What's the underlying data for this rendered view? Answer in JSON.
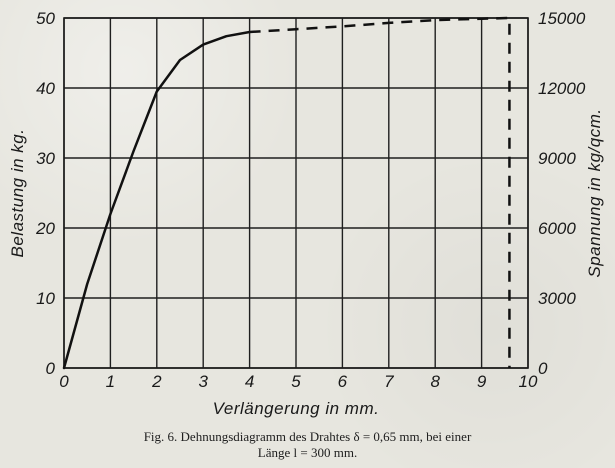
{
  "figure": {
    "caption_line_1": "Fig. 6.  Dehnungsdiagramm des Drahtes δ = 0,65 mm, bei einer",
    "caption_line_2": "Länge l = 300 mm."
  },
  "chart_data": {
    "type": "line",
    "xlabel": "Verlängerung in mm.",
    "ylabel_left": "Belastung in kg.",
    "ylabel_right": "Spannung in kg/qcm.",
    "xlim": [
      0,
      10
    ],
    "ylim_left": [
      0,
      50
    ],
    "ylim_right": [
      0,
      15000
    ],
    "x_tick_labels": [
      "0",
      "1",
      "2",
      "3",
      "4",
      "5",
      "6",
      "7",
      "8",
      "9",
      "10"
    ],
    "y_left_tick_labels": [
      "0",
      "10",
      "20",
      "30",
      "40",
      "50"
    ],
    "y_right_tick_labels": [
      "0",
      "3000",
      "6000",
      "9000",
      "12000",
      "15000"
    ],
    "grid": true,
    "series": [
      {
        "style": "solid",
        "points": [
          [
            0,
            0
          ],
          [
            0.5,
            12
          ],
          [
            1,
            22
          ],
          [
            1.5,
            31
          ],
          [
            2,
            39.5
          ],
          [
            2.5,
            44
          ],
          [
            3,
            46.2
          ],
          [
            3.5,
            47.4
          ],
          [
            4,
            48.0
          ]
        ]
      },
      {
        "style": "dashed",
        "points": [
          [
            4,
            48.0
          ],
          [
            5,
            48.4
          ],
          [
            6,
            48.8
          ],
          [
            7,
            49.3
          ],
          [
            8,
            49.7
          ],
          [
            9,
            49.9
          ],
          [
            9.6,
            50.0
          ],
          [
            9.6,
            0
          ]
        ]
      }
    ]
  }
}
